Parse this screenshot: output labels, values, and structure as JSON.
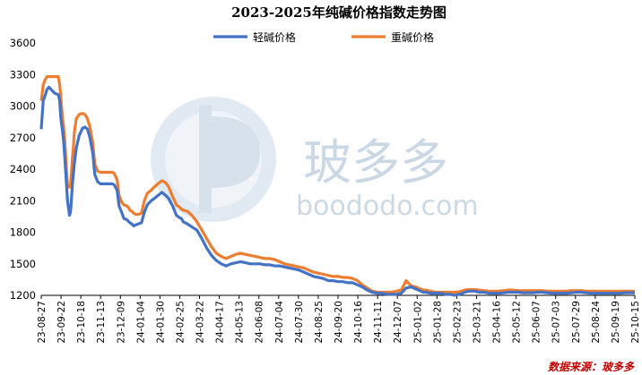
{
  "chart_data": {
    "type": "line",
    "title": "2023-2025年纯碱价格指数走势图",
    "xlabel": "",
    "ylabel": "",
    "ylim": [
      1200,
      3600
    ],
    "yticks": [
      1200,
      1500,
      1800,
      2100,
      2400,
      2700,
      3000,
      3300,
      3600
    ],
    "x_tick_labels": [
      "23-08-27",
      "23-09-22",
      "23-10-18",
      "23-11-13",
      "23-12-09",
      "24-01-04",
      "24-01-30",
      "24-02-25",
      "24-03-22",
      "24-04-17",
      "24-05-13",
      "24-06-08",
      "24-07-04",
      "24-07-30",
      "24-08-25",
      "24-09-20",
      "24-10-16",
      "24-11-11",
      "24-12-07",
      "25-01-02",
      "25-01-28",
      "25-02-23",
      "25-03-21",
      "25-04-16",
      "25-05-12",
      "25-06-07",
      "25-07-03",
      "25-07-29",
      "25-08-24",
      "25-09-19",
      "25-10-15"
    ],
    "grid": false,
    "legend_position": "top-center",
    "series": [
      {
        "name": "轻碱价格",
        "color": "#4472C4",
        "x": [
          0,
          4,
          8,
          12,
          16,
          22,
          28,
          35,
          38,
          40,
          42,
          44,
          46,
          48,
          50,
          52,
          54,
          56,
          58,
          60,
          62,
          64,
          66,
          68,
          72,
          78,
          85,
          90,
          95,
          100,
          106,
          110,
          116,
          122,
          130,
          138,
          146,
          150,
          156,
          160,
          166,
          170,
          176,
          180,
          182,
          186,
          190,
          194,
          200,
          206,
          212,
          218,
          226,
          232,
          240,
          248,
          256,
          262,
          270,
          278,
          284,
          288,
          292,
          300,
          310,
          320,
          330,
          340,
          350,
          360,
          370,
          380,
          390,
          400,
          410,
          420,
          430,
          440,
          450,
          460,
          470,
          480,
          490,
          500,
          510,
          520,
          530,
          540,
          550,
          560,
          570,
          580,
          590,
          600,
          610,
          620,
          630,
          640,
          650,
          660,
          670,
          680,
          690,
          700,
          710,
          720,
          730,
          740,
          750,
          760,
          770,
          775,
          780,
          785,
          790,
          800,
          810,
          820,
          830,
          840,
          850,
          858,
          864,
          870,
          880,
          890,
          900,
          910,
          920,
          930,
          940,
          950,
          960,
          970,
          980,
          990,
          1000,
          1010,
          1020,
          1030,
          1040,
          1050,
          1060,
          1070,
          1080,
          1090,
          1100,
          1110,
          1120,
          1130,
          1140,
          1150,
          1160,
          1170,
          1180,
          1190,
          1200,
          1210,
          1220
        ],
        "values": [
          2780,
          3050,
          3100,
          3160,
          3180,
          3150,
          3120,
          3110,
          3050,
          2900,
          2820,
          2750,
          2660,
          2540,
          2400,
          2250,
          2100,
          2030,
          1960,
          1990,
          2100,
          2250,
          2350,
          2450,
          2600,
          2720,
          2790,
          2800,
          2780,
          2700,
          2550,
          2350,
          2280,
          2260,
          2260,
          2260,
          2260,
          2250,
          2200,
          2050,
          1980,
          1930,
          1920,
          1900,
          1890,
          1880,
          1860,
          1870,
          1880,
          1890,
          1990,
          2060,
          2100,
          2120,
          2150,
          2180,
          2150,
          2120,
          2050,
          1960,
          1940,
          1930,
          1900,
          1880,
          1850,
          1820,
          1740,
          1650,
          1580,
          1530,
          1500,
          1480,
          1500,
          1510,
          1520,
          1510,
          1500,
          1500,
          1500,
          1490,
          1490,
          1480,
          1480,
          1470,
          1460,
          1450,
          1440,
          1420,
          1400,
          1380,
          1370,
          1360,
          1340,
          1340,
          1330,
          1330,
          1320,
          1320,
          1300,
          1280,
          1250,
          1230,
          1220,
          1220,
          1210,
          1210,
          1210,
          1220,
          1270,
          1280,
          1260,
          1250,
          1240,
          1230,
          1230,
          1220,
          1220,
          1220,
          1210,
          1210,
          1200,
          1210,
          1215,
          1230,
          1240,
          1240,
          1230,
          1230,
          1220,
          1220,
          1220,
          1225,
          1230,
          1230,
          1230,
          1225,
          1225,
          1225,
          1230,
          1230,
          1225,
          1220,
          1220,
          1220,
          1220,
          1225,
          1230,
          1230,
          1225,
          1220,
          1220,
          1220,
          1220,
          1220,
          1220,
          1220,
          1225,
          1225,
          1225
        ]
      },
      {
        "name": "重碱价格",
        "color": "#ED7D31",
        "x": [
          0,
          4,
          8,
          12,
          16,
          22,
          28,
          35,
          38,
          40,
          42,
          44,
          46,
          48,
          50,
          52,
          54,
          56,
          58,
          60,
          62,
          64,
          66,
          68,
          72,
          78,
          85,
          90,
          95,
          100,
          106,
          110,
          116,
          122,
          130,
          138,
          146,
          150,
          156,
          160,
          166,
          170,
          176,
          180,
          182,
          186,
          190,
          194,
          200,
          206,
          212,
          218,
          226,
          232,
          240,
          248,
          256,
          262,
          270,
          278,
          284,
          288,
          292,
          300,
          310,
          320,
          330,
          340,
          350,
          360,
          370,
          380,
          390,
          400,
          410,
          420,
          430,
          440,
          450,
          460,
          470,
          480,
          490,
          500,
          510,
          520,
          530,
          540,
          550,
          560,
          570,
          580,
          590,
          600,
          610,
          620,
          630,
          640,
          650,
          660,
          670,
          680,
          690,
          700,
          710,
          720,
          730,
          740,
          750,
          760,
          770,
          775,
          780,
          785,
          790,
          800,
          810,
          820,
          830,
          840,
          850,
          858,
          864,
          870,
          880,
          890,
          900,
          910,
          920,
          930,
          940,
          950,
          960,
          970,
          980,
          990,
          1000,
          1010,
          1020,
          1030,
          1040,
          1050,
          1060,
          1070,
          1080,
          1090,
          1100,
          1110,
          1120,
          1130,
          1140,
          1150,
          1160,
          1170,
          1180,
          1190,
          1200,
          1210,
          1220
        ],
        "values": [
          3050,
          3200,
          3250,
          3280,
          3280,
          3280,
          3280,
          3280,
          3200,
          3100,
          2980,
          2880,
          2800,
          2700,
          2550,
          2380,
          2250,
          2230,
          2230,
          2250,
          2350,
          2500,
          2600,
          2750,
          2880,
          2920,
          2930,
          2920,
          2880,
          2800,
          2650,
          2450,
          2380,
          2370,
          2370,
          2370,
          2370,
          2360,
          2300,
          2150,
          2080,
          2060,
          2050,
          2030,
          2010,
          2000,
          1980,
          1970,
          1970,
          1980,
          2100,
          2170,
          2200,
          2230,
          2260,
          2290,
          2270,
          2230,
          2140,
          2060,
          2040,
          2020,
          2010,
          2000,
          1960,
          1900,
          1820,
          1740,
          1660,
          1600,
          1570,
          1550,
          1570,
          1590,
          1600,
          1590,
          1580,
          1570,
          1560,
          1550,
          1550,
          1540,
          1520,
          1500,
          1490,
          1480,
          1470,
          1460,
          1440,
          1420,
          1410,
          1400,
          1390,
          1380,
          1380,
          1370,
          1370,
          1360,
          1340,
          1300,
          1270,
          1240,
          1230,
          1230,
          1230,
          1230,
          1240,
          1250,
          1340,
          1290,
          1280,
          1270,
          1260,
          1250,
          1250,
          1240,
          1230,
          1230,
          1230,
          1230,
          1230,
          1235,
          1240,
          1250,
          1255,
          1255,
          1250,
          1245,
          1240,
          1240,
          1240,
          1245,
          1250,
          1250,
          1245,
          1245,
          1245,
          1245,
          1245,
          1245,
          1240,
          1240,
          1240,
          1240,
          1240,
          1245,
          1245,
          1245,
          1240,
          1240,
          1240,
          1240,
          1240,
          1240,
          1240,
          1240,
          1240,
          1240,
          1240
        ]
      }
    ]
  },
  "source_text": "数据来源：玻多多",
  "watermark": {
    "brand": "玻多多",
    "url": "boododo.com",
    "color": "#9fb8d0"
  }
}
